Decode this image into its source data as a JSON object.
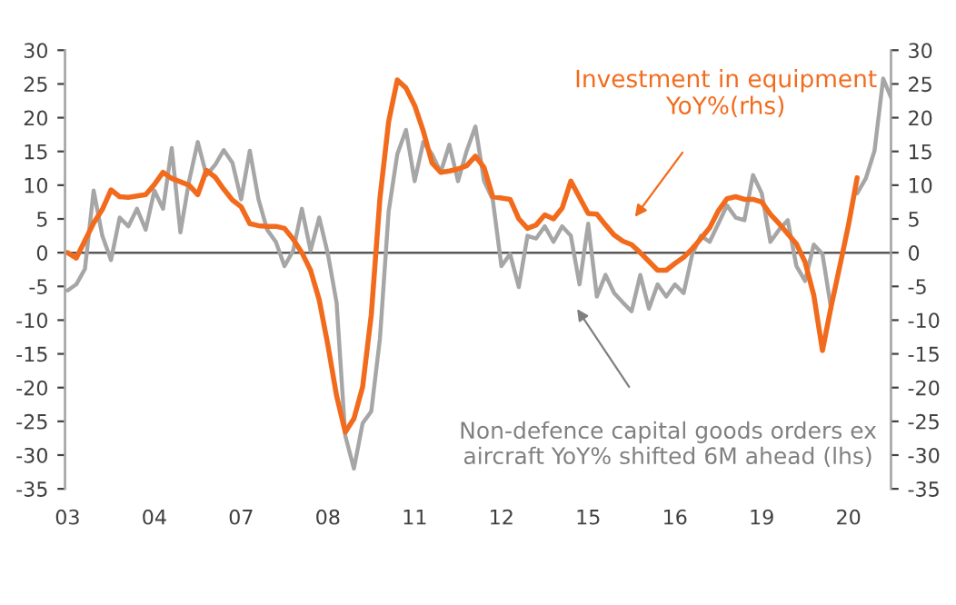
{
  "chart_data": {
    "type": "line",
    "categories": [
      "03",
      null,
      null,
      null,
      null,
      null,
      null,
      null,
      null,
      null,
      "04",
      null,
      null,
      null,
      null,
      null,
      null,
      null,
      null,
      null,
      "07",
      null,
      null,
      null,
      null,
      null,
      null,
      null,
      null,
      null,
      "08",
      null,
      null,
      null,
      null,
      null,
      null,
      null,
      null,
      null,
      "11",
      null,
      null,
      null,
      null,
      null,
      null,
      null,
      null,
      null,
      "12",
      null,
      null,
      null,
      null,
      null,
      null,
      null,
      null,
      null,
      "15",
      null,
      null,
      null,
      null,
      null,
      null,
      null,
      null,
      null,
      "16",
      null,
      null,
      null,
      null,
      null,
      null,
      null,
      null,
      null,
      "19",
      null,
      null,
      null,
      null,
      null,
      null,
      null,
      null,
      null,
      "20",
      null,
      null,
      null,
      null,
      null
    ],
    "ylim": [
      -35,
      30
    ],
    "yticks": [
      -35,
      -30,
      -25,
      -20,
      -15,
      -10,
      -5,
      0,
      5,
      10,
      15,
      20,
      25,
      30
    ],
    "y2lim": [
      -35,
      30
    ],
    "y2ticks": [
      -35,
      -30,
      -25,
      -20,
      -15,
      -10,
      -5,
      0,
      5,
      10,
      15,
      20,
      25,
      30
    ],
    "series": [
      {
        "color": "#a6a6a6",
        "values": [
          -5.6,
          -4.7,
          -2.4,
          9.2,
          2.5,
          -1.1,
          5.2,
          3.9,
          6.5,
          3.4,
          9.2,
          6.5,
          15.5,
          3,
          10.6,
          16.4,
          11.5,
          13,
          15.2,
          13.3,
          7.9,
          15.1,
          7.9,
          3.4,
          1.6,
          -2,
          0.3,
          6.5,
          0.3,
          5.2,
          -0.2,
          -7.4,
          -27.1,
          -32,
          -25.3,
          -23.5,
          -12.7,
          6.1,
          14.6,
          18.2,
          10.6,
          16.4,
          14.6,
          11.9,
          16,
          10.6,
          15.1,
          18.7,
          10.6,
          7.9,
          -2,
          -0.2,
          -5.1,
          2.5,
          2.1,
          3.9,
          1.6,
          3.9,
          2.5,
          -4.7,
          4.3,
          -6.5,
          -3.3,
          -6,
          -7.4,
          -8.7,
          -3.3,
          -8.3,
          -4.7,
          -6.5,
          -4.7,
          -6,
          -0.2,
          2.5,
          1.6,
          4.3,
          7,
          5.2,
          4.8,
          11.5,
          8.8,
          1.6,
          3.4,
          4.8,
          -2,
          -4.2,
          1.2,
          -0.2,
          -8.3,
          null,
          null,
          8.8,
          11,
          15.1,
          25.8,
          22.7
        ]
      },
      {
        "axis": "y2",
        "color": "#f26b1d",
        "values": [
          0,
          -0.8,
          1.8,
          4.4,
          6.4,
          9.3,
          8.3,
          8.2,
          8.4,
          8.6,
          10.1,
          11.9,
          11,
          10.5,
          10,
          8.6,
          12.2,
          11.2,
          9.4,
          7.8,
          6.8,
          4.3,
          4,
          3.9,
          3.9,
          3.6,
          2,
          0,
          -2.6,
          -7,
          -13.7,
          -21.2,
          -26.6,
          -24.6,
          -19.9,
          -9.2,
          8.1,
          19.4,
          25.6,
          24.4,
          21.8,
          18,
          13.3,
          11.9,
          12.1,
          12.4,
          12.9,
          14.3,
          12.6,
          8.3,
          8.1,
          7.9,
          5,
          3.6,
          4.1,
          5.6,
          5,
          6.6,
          10.6,
          8.2,
          5.8,
          5.7,
          4.1,
          2.6,
          1.7,
          1.2,
          0,
          -1.3,
          -2.6,
          -2.6,
          -1.6,
          -0.7,
          0.6,
          2.1,
          3.7,
          6.2,
          8,
          8.3,
          7.9,
          7.9,
          7.5,
          5.7,
          4.3,
          2.8,
          1.3,
          -1.4,
          -6.3,
          -14.5,
          -8,
          -2,
          4.1,
          11.1,
          null,
          null,
          null,
          null
        ]
      }
    ],
    "ref_lines": [
      {
        "axis": "y",
        "value": 0,
        "color": "#595959"
      }
    ],
    "annotations": [
      "Investment in equipment\nYoY%(rhs)",
      "Non-defence capital goods orders ex\naircraft YoY% shifted 6M ahead (lhs)"
    ],
    "grid": false,
    "legend": false
  }
}
